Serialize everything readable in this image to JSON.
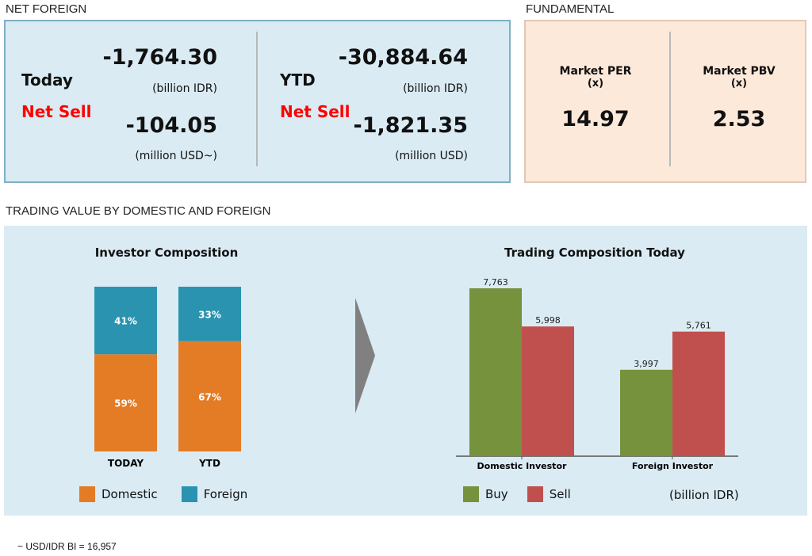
{
  "net_foreign": {
    "title": "NET FOREIGN",
    "today": {
      "label": "Today",
      "status": "Net Sell",
      "idr_value": "-1,764.30",
      "idr_unit": "(billion IDR)",
      "usd_value": "-104.05",
      "usd_unit": "(million USD~)"
    },
    "ytd": {
      "label": "YTD",
      "status": "Net Sell",
      "idr_value": "-30,884.64",
      "idr_unit": "(billion IDR)",
      "usd_value": "-1,821.35",
      "usd_unit": "(million USD)"
    }
  },
  "fundamental": {
    "title": "FUNDAMENTAL",
    "per": {
      "label": "Market PER",
      "unit": "(x)",
      "value": "14.97"
    },
    "pbv": {
      "label": "Market PBV",
      "unit": "(x)",
      "value": "2.53"
    }
  },
  "trading_title": "TRADING VALUE BY DOMESTIC AND FOREIGN",
  "chart_data": [
    {
      "type": "bar",
      "stacked": true,
      "title": "Investor Composition",
      "categories": [
        "TODAY",
        "YTD"
      ],
      "series": [
        {
          "name": "Domestic",
          "values": [
            59,
            67
          ],
          "labels": [
            "59%",
            "67%"
          ],
          "color": "#e37c25"
        },
        {
          "name": "Foreign",
          "values": [
            41,
            33
          ],
          "labels": [
            "41%",
            "33%"
          ],
          "color": "#2a93b0"
        }
      ],
      "ylim": [
        0,
        100
      ],
      "legend": "bottom"
    },
    {
      "type": "bar",
      "title": "Trading Composition Today",
      "categories": [
        "Domestic Investor",
        "Foreign Investor"
      ],
      "series": [
        {
          "name": "Buy",
          "values": [
            7763,
            3997
          ],
          "labels": [
            "7,763",
            "3,997"
          ],
          "color": "#76923c"
        },
        {
          "name": "Sell",
          "values": [
            5998,
            5761
          ],
          "labels": [
            "5,998",
            "5,761"
          ],
          "color": "#c0504d"
        }
      ],
      "unit": "(billion IDR)",
      "legend": "bottom"
    }
  ],
  "footnote": "~ USD/IDR BI = 16,957"
}
